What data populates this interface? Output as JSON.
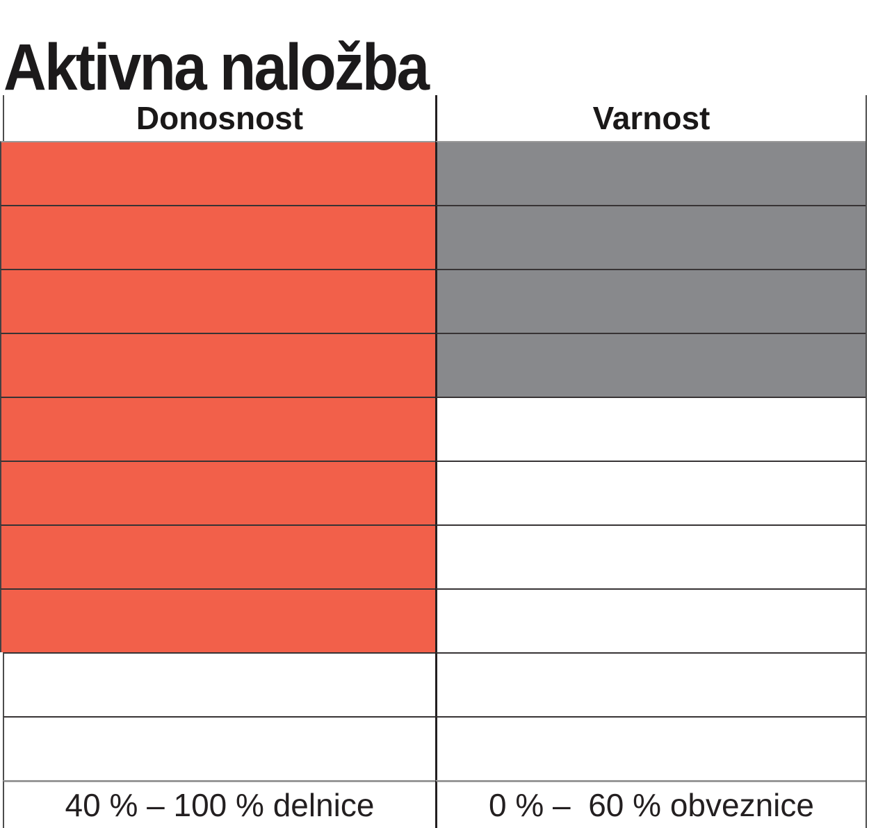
{
  "page": {
    "title": "Aktivna naložba"
  },
  "table": {
    "total_rows": 10,
    "columns": [
      {
        "header": "Donosnost",
        "footer": "40 % – 100 % delnice",
        "filled_rows": 8,
        "fill_color": "#F2604A"
      },
      {
        "header": "Varnost",
        "footer": "0 % –  60 % obveznice",
        "filled_rows": 4,
        "fill_color": "#88898C"
      }
    ],
    "border_colors": {
      "row_separator": "#373334",
      "light_separator": "#989898",
      "outer": "#4c4c4c",
      "column_divider": "#231f20"
    }
  },
  "chart_data": {
    "type": "table",
    "title": "Aktivna naložba",
    "categories": [
      "Donosnost",
      "Varnost"
    ],
    "values": [
      8,
      4
    ],
    "scale_max": 10,
    "series": [
      {
        "name": "Donosnost",
        "filled_cells": 8,
        "total_cells": 10,
        "color": "#F2604A",
        "range_label": "40 % – 100 % delnice"
      },
      {
        "name": "Varnost",
        "filled_cells": 4,
        "total_cells": 10,
        "color": "#88898C",
        "range_label": "0 % –  60 % obveznice"
      }
    ],
    "legend_position": "none",
    "grid": true,
    "notes": "Rating chart: 10 stacked cells per column, filled from top; Donosnost filled red 8/10, Varnost filled gray 4/10"
  }
}
